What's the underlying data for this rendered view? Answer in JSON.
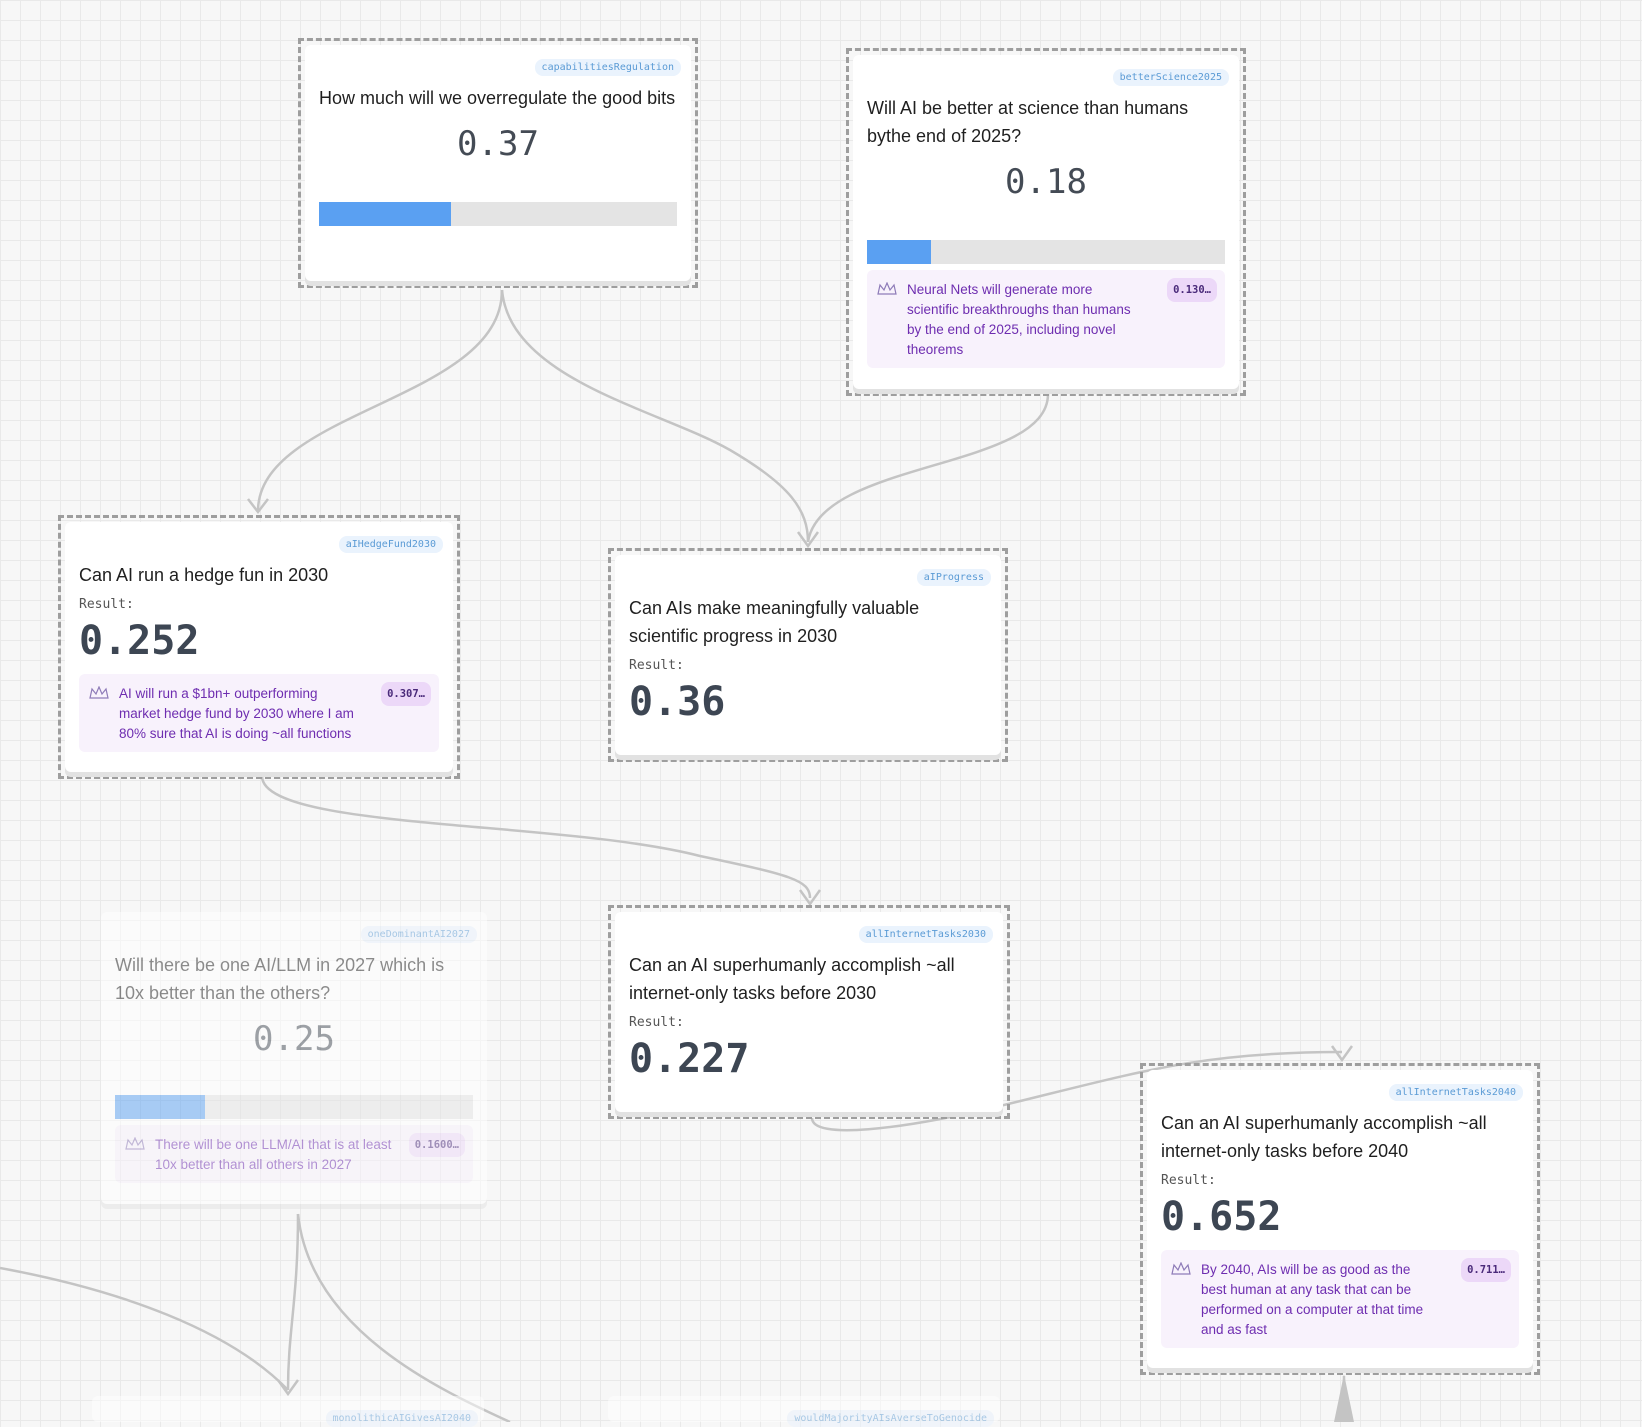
{
  "nodes": {
    "capabilities_regulation": {
      "slug": "capabilitiesRegulation",
      "question": "How much will we overregulate the good bits",
      "value": "0.37",
      "progress": 0.37
    },
    "better_science_2025": {
      "slug": "betterScience2025",
      "question": "Will AI be better at science than humans bythe end of 2025?",
      "value": "0.18",
      "progress": 0.18,
      "reference": {
        "text": "Neural Nets will generate more scientific breakthroughs than humans by the end of 2025, including novel theorems",
        "badge": "0.130…"
      }
    },
    "ai_hedge_fund_2030": {
      "slug": "aIHedgeFund2030",
      "question": "Can AI run a hedge fun in 2030",
      "result_label": "Result:",
      "result": "0.252",
      "reference": {
        "text": "AI will run a $1bn+ outperforming market hedge fund by 2030 where I am 80% sure that AI is doing ~all functions",
        "badge": "0.307…"
      }
    },
    "ai_progress": {
      "slug": "aIProgress",
      "question": "Can AIs make meaningfully valuable scientific progress in 2030",
      "result_label": "Result:",
      "result": "0.36"
    },
    "one_dominant_ai_2027": {
      "slug": "oneDominantAI2027",
      "question": "Will there be one AI/LLM in 2027 which is 10x better than the others?",
      "value": "0.25",
      "progress": 0.25,
      "reference": {
        "text": "There will be one LLM/AI that is at least 10x better than all others in 2027",
        "badge": "0.1600…"
      }
    },
    "all_internet_tasks_2030": {
      "slug": "allInternetTasks2030",
      "question": "Can an AI superhumanly accomplish ~all internet-only tasks before 2030",
      "result_label": "Result:",
      "result": "0.227"
    },
    "all_internet_tasks_2040": {
      "slug": "allInternetTasks2040",
      "question": "Can an AI superhumanly accomplish ~all internet-only tasks before 2040",
      "result_label": "Result:",
      "result": "0.652",
      "reference": {
        "text": "By 2040, AIs will be as good as the best human at any task that can be performed on a computer at that time and as fast",
        "badge": "0.711…"
      }
    },
    "stub_left": {
      "slug": "monolithicAIGivesAI2040"
    },
    "stub_right": {
      "slug": "wouldMajorityAIsAverseToGenocide"
    }
  },
  "colors": {
    "chip_text": "#5b9bd5",
    "progress_fill": "#5aa0f2",
    "reference_text": "#6e2db0",
    "edge": "#c4c4c4"
  },
  "icons": {
    "reference": "crown-icon"
  }
}
